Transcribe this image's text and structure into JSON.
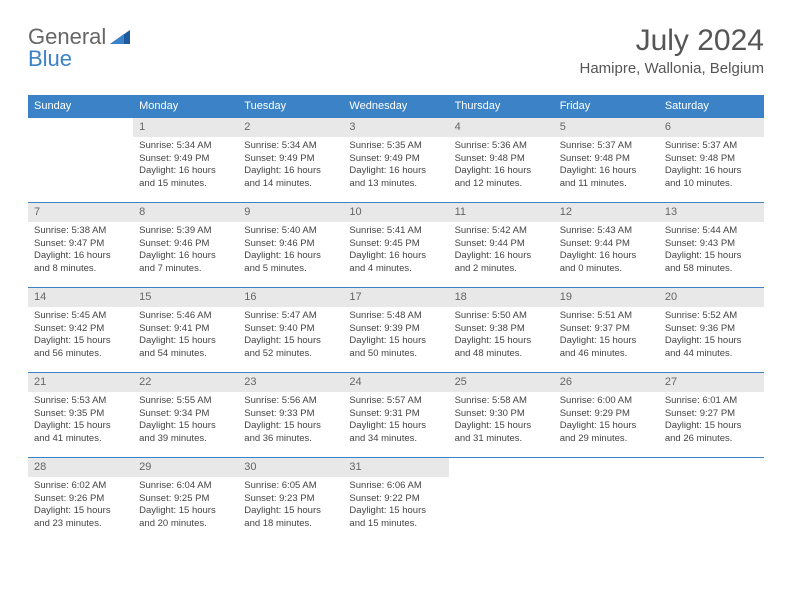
{
  "logo": {
    "text1": "General",
    "text2": "Blue"
  },
  "title": "July 2024",
  "location": "Hamipre, Wallonia, Belgium",
  "colors": {
    "header_bg": "#3b82c7",
    "header_text": "#ffffff",
    "daynum_bg": "#e8e8e8",
    "daynum_text": "#666666",
    "body_text": "#444444",
    "border": "#3b82c7"
  },
  "weekdays": [
    "Sunday",
    "Monday",
    "Tuesday",
    "Wednesday",
    "Thursday",
    "Friday",
    "Saturday"
  ],
  "start_offset": 1,
  "days": [
    {
      "n": 1,
      "sr": "5:34 AM",
      "ss": "9:49 PM",
      "dl": "16 hours and 15 minutes."
    },
    {
      "n": 2,
      "sr": "5:34 AM",
      "ss": "9:49 PM",
      "dl": "16 hours and 14 minutes."
    },
    {
      "n": 3,
      "sr": "5:35 AM",
      "ss": "9:49 PM",
      "dl": "16 hours and 13 minutes."
    },
    {
      "n": 4,
      "sr": "5:36 AM",
      "ss": "9:48 PM",
      "dl": "16 hours and 12 minutes."
    },
    {
      "n": 5,
      "sr": "5:37 AM",
      "ss": "9:48 PM",
      "dl": "16 hours and 11 minutes."
    },
    {
      "n": 6,
      "sr": "5:37 AM",
      "ss": "9:48 PM",
      "dl": "16 hours and 10 minutes."
    },
    {
      "n": 7,
      "sr": "5:38 AM",
      "ss": "9:47 PM",
      "dl": "16 hours and 8 minutes."
    },
    {
      "n": 8,
      "sr": "5:39 AM",
      "ss": "9:46 PM",
      "dl": "16 hours and 7 minutes."
    },
    {
      "n": 9,
      "sr": "5:40 AM",
      "ss": "9:46 PM",
      "dl": "16 hours and 5 minutes."
    },
    {
      "n": 10,
      "sr": "5:41 AM",
      "ss": "9:45 PM",
      "dl": "16 hours and 4 minutes."
    },
    {
      "n": 11,
      "sr": "5:42 AM",
      "ss": "9:44 PM",
      "dl": "16 hours and 2 minutes."
    },
    {
      "n": 12,
      "sr": "5:43 AM",
      "ss": "9:44 PM",
      "dl": "16 hours and 0 minutes."
    },
    {
      "n": 13,
      "sr": "5:44 AM",
      "ss": "9:43 PM",
      "dl": "15 hours and 58 minutes."
    },
    {
      "n": 14,
      "sr": "5:45 AM",
      "ss": "9:42 PM",
      "dl": "15 hours and 56 minutes."
    },
    {
      "n": 15,
      "sr": "5:46 AM",
      "ss": "9:41 PM",
      "dl": "15 hours and 54 minutes."
    },
    {
      "n": 16,
      "sr": "5:47 AM",
      "ss": "9:40 PM",
      "dl": "15 hours and 52 minutes."
    },
    {
      "n": 17,
      "sr": "5:48 AM",
      "ss": "9:39 PM",
      "dl": "15 hours and 50 minutes."
    },
    {
      "n": 18,
      "sr": "5:50 AM",
      "ss": "9:38 PM",
      "dl": "15 hours and 48 minutes."
    },
    {
      "n": 19,
      "sr": "5:51 AM",
      "ss": "9:37 PM",
      "dl": "15 hours and 46 minutes."
    },
    {
      "n": 20,
      "sr": "5:52 AM",
      "ss": "9:36 PM",
      "dl": "15 hours and 44 minutes."
    },
    {
      "n": 21,
      "sr": "5:53 AM",
      "ss": "9:35 PM",
      "dl": "15 hours and 41 minutes."
    },
    {
      "n": 22,
      "sr": "5:55 AM",
      "ss": "9:34 PM",
      "dl": "15 hours and 39 minutes."
    },
    {
      "n": 23,
      "sr": "5:56 AM",
      "ss": "9:33 PM",
      "dl": "15 hours and 36 minutes."
    },
    {
      "n": 24,
      "sr": "5:57 AM",
      "ss": "9:31 PM",
      "dl": "15 hours and 34 minutes."
    },
    {
      "n": 25,
      "sr": "5:58 AM",
      "ss": "9:30 PM",
      "dl": "15 hours and 31 minutes."
    },
    {
      "n": 26,
      "sr": "6:00 AM",
      "ss": "9:29 PM",
      "dl": "15 hours and 29 minutes."
    },
    {
      "n": 27,
      "sr": "6:01 AM",
      "ss": "9:27 PM",
      "dl": "15 hours and 26 minutes."
    },
    {
      "n": 28,
      "sr": "6:02 AM",
      "ss": "9:26 PM",
      "dl": "15 hours and 23 minutes."
    },
    {
      "n": 29,
      "sr": "6:04 AM",
      "ss": "9:25 PM",
      "dl": "15 hours and 20 minutes."
    },
    {
      "n": 30,
      "sr": "6:05 AM",
      "ss": "9:23 PM",
      "dl": "15 hours and 18 minutes."
    },
    {
      "n": 31,
      "sr": "6:06 AM",
      "ss": "9:22 PM",
      "dl": "15 hours and 15 minutes."
    }
  ],
  "labels": {
    "sunrise": "Sunrise:",
    "sunset": "Sunset:",
    "daylight": "Daylight:"
  }
}
